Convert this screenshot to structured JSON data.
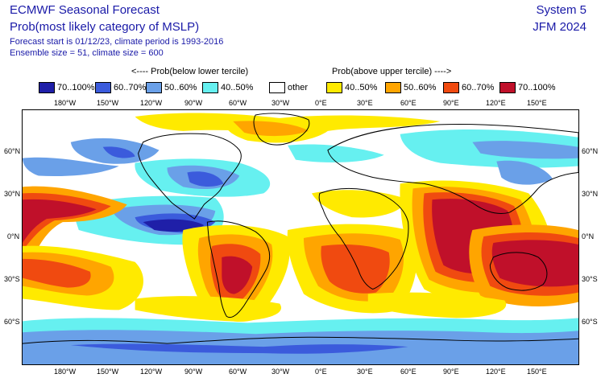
{
  "header": {
    "title": "ECMWF Seasonal Forecast",
    "subtitle": "Prob(most likely category of MSLP)",
    "forecast_start": "Forecast start is 01/12/23, climate period is 1993-2016",
    "ensemble": "Ensemble size = 51, climate size = 600",
    "system": "System 5",
    "season": "JFM 2024"
  },
  "legend": {
    "below_heading": "<---- Prob(below lower tercile)",
    "above_heading": "Prob(above upper tercile) ---->",
    "items": [
      {
        "label": "70..100%",
        "color": "#1f1fa8"
      },
      {
        "label": "60..70%",
        "color": "#3b5bdc"
      },
      {
        "label": "50..60%",
        "color": "#6aa0e8"
      },
      {
        "label": "40..50%",
        "color": "#66f0f0"
      },
      {
        "label": "other",
        "color": "#ffffff"
      },
      {
        "label": "40..50%",
        "color": "#ffea00"
      },
      {
        "label": "50..60%",
        "color": "#ffa500"
      },
      {
        "label": "60..70%",
        "color": "#f04a10"
      },
      {
        "label": "70..100%",
        "color": "#c0102a"
      }
    ]
  },
  "axes": {
    "lon_labels": [
      "180°W",
      "150°W",
      "120°W",
      "90°W",
      "60°W",
      "30°W",
      "0°E",
      "30°E",
      "60°E",
      "90°E",
      "120°E",
      "150°E"
    ],
    "lat_labels": [
      "60°N",
      "30°N",
      "0°N",
      "30°S",
      "60°S"
    ]
  }
}
